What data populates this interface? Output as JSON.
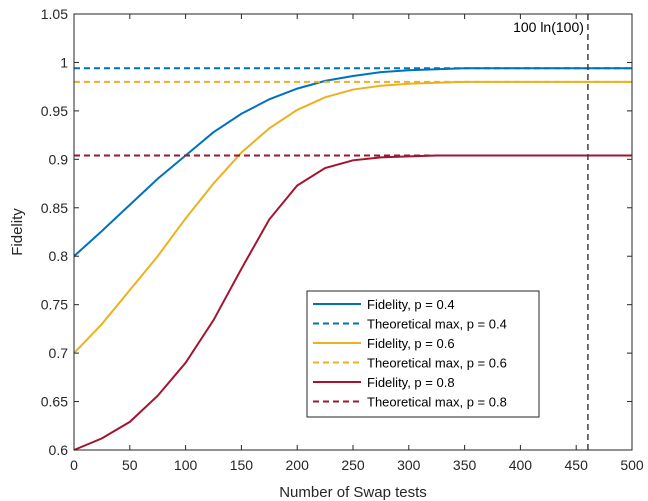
{
  "chart_data": {
    "type": "line",
    "xlabel": "Number of Swap tests",
    "ylabel": "Fidelity",
    "xlim": [
      0,
      500
    ],
    "ylim": [
      0.6,
      1.05
    ],
    "xticks": [
      0,
      50,
      100,
      150,
      200,
      250,
      300,
      350,
      400,
      450,
      500
    ],
    "xtick_labels": [
      "0",
      "50",
      "100",
      "150",
      "200",
      "250",
      "300",
      "350",
      "400",
      "450",
      "500"
    ],
    "yticks": [
      0.6,
      0.65,
      0.7,
      0.75,
      0.8,
      0.85,
      0.9,
      0.95,
      1.0,
      1.05
    ],
    "ytick_labels": [
      "0.6",
      "0.65",
      "0.7",
      "0.75",
      "0.8",
      "0.85",
      "0.9",
      "0.95",
      "1",
      "1.05"
    ],
    "grid": false,
    "legend_position": "bottom-right",
    "vline": {
      "x": 460.5,
      "label": "100 ln(100)",
      "color": "#404040",
      "style": "dashed"
    },
    "series": [
      {
        "name": "Fidelity, p = 0.4",
        "style": "solid",
        "color": "#0072BD",
        "x": [
          0,
          25,
          50,
          75,
          100,
          125,
          150,
          175,
          200,
          225,
          250,
          275,
          300,
          325,
          350,
          375,
          400,
          450,
          500
        ],
        "y": [
          0.8,
          0.826,
          0.853,
          0.88,
          0.904,
          0.928,
          0.947,
          0.962,
          0.973,
          0.981,
          0.986,
          0.99,
          0.992,
          0.993,
          0.994,
          0.994,
          0.994,
          0.994,
          0.994
        ]
      },
      {
        "name": "Theoretical max, p = 0.4",
        "style": "dashed",
        "color": "#0072BD",
        "x": [
          0,
          500
        ],
        "y": [
          0.994,
          0.994
        ]
      },
      {
        "name": "Fidelity, p = 0.6",
        "style": "solid",
        "color": "#EDB120",
        "x": [
          0,
          25,
          50,
          75,
          100,
          125,
          150,
          175,
          200,
          225,
          250,
          275,
          300,
          325,
          350,
          375,
          400,
          450,
          500
        ],
        "y": [
          0.7,
          0.73,
          0.765,
          0.8,
          0.839,
          0.875,
          0.907,
          0.932,
          0.951,
          0.964,
          0.972,
          0.976,
          0.978,
          0.979,
          0.98,
          0.98,
          0.98,
          0.98,
          0.98
        ]
      },
      {
        "name": "Theoretical max, p = 0.6",
        "style": "dashed",
        "color": "#EDB120",
        "x": [
          0,
          500
        ],
        "y": [
          0.98,
          0.98
        ]
      },
      {
        "name": "Fidelity, p = 0.8",
        "style": "solid",
        "color": "#A2142F",
        "x": [
          0,
          25,
          50,
          75,
          100,
          125,
          150,
          175,
          200,
          225,
          250,
          275,
          300,
          325,
          350,
          375,
          400,
          450,
          500
        ],
        "y": [
          0.6,
          0.612,
          0.629,
          0.656,
          0.69,
          0.734,
          0.787,
          0.838,
          0.873,
          0.891,
          0.899,
          0.902,
          0.903,
          0.904,
          0.904,
          0.904,
          0.904,
          0.904,
          0.904
        ]
      },
      {
        "name": "Theoretical max, p = 0.8",
        "style": "dashed",
        "color": "#A2142F",
        "x": [
          0,
          500
        ],
        "y": [
          0.904,
          0.904
        ]
      }
    ]
  }
}
